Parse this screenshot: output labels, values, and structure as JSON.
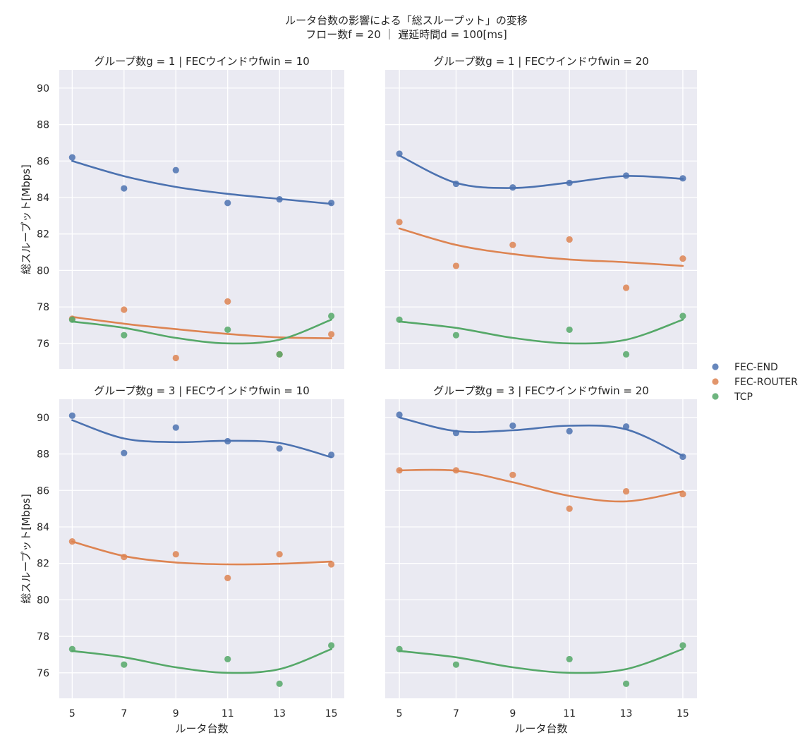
{
  "figure": {
    "title_line1": "ルータ台数の影響による「総スループット」の変移",
    "title_line2": "フロー数f = 20 ｜ 遅延時間d = 100[ms]"
  },
  "colors": {
    "FEC-END": "#4c72b0",
    "FEC-ROUTER": "#dd8452",
    "TCP": "#55a868",
    "panel_bg": "#eaeaf2",
    "grid": "#ffffff"
  },
  "legend": {
    "placement": "right",
    "entries": [
      "FEC-END",
      "FEC-ROUTER",
      "TCP"
    ]
  },
  "chart_data": [
    {
      "type": "scatter",
      "title": "グループ数g = 1 | FECウインドウfwin = 10",
      "xlabel": "",
      "ylabel": "総スループット[Mbps]",
      "xlim": [
        4.5,
        15.5
      ],
      "ylim": [
        74.6,
        91
      ],
      "x_ticks": [
        5,
        7,
        9,
        11,
        13,
        15
      ],
      "y_ticks": [
        76,
        78,
        80,
        82,
        84,
        86,
        88,
        90
      ],
      "grid": true,
      "fit": "polynomial trend line",
      "series": [
        {
          "name": "FEC-END",
          "x": [
            5,
            7,
            11,
            13,
            15,
            9
          ],
          "y": [
            86.2,
            84.5,
            83.7,
            83.9,
            83.7,
            85.5
          ],
          "fit_y": [
            86.0,
            85.17,
            84.58,
            84.2,
            83.92,
            83.65
          ]
        },
        {
          "name": "FEC-ROUTER",
          "x": [
            5,
            7,
            9,
            11,
            13,
            15
          ],
          "y": [
            77.35,
            77.85,
            75.2,
            78.3,
            75.4,
            76.5
          ],
          "fit_y": [
            77.45,
            77.08,
            76.78,
            76.52,
            76.33,
            76.28
          ]
        },
        {
          "name": "TCP",
          "x": [
            5,
            7,
            11,
            13,
            15
          ],
          "y": [
            77.3,
            76.45,
            76.75,
            75.4,
            77.5
          ],
          "fit_y": [
            77.2,
            76.85,
            76.3,
            76.0,
            76.2,
            77.3
          ]
        }
      ]
    },
    {
      "type": "scatter",
      "title": "グループ数g = 1 | FECウインドウfwin = 20",
      "xlabel": "",
      "ylabel": "",
      "xlim": [
        4.5,
        15.5
      ],
      "ylim": [
        74.6,
        91
      ],
      "x_ticks": [
        5,
        7,
        9,
        11,
        13,
        15
      ],
      "y_ticks": [
        76,
        78,
        80,
        82,
        84,
        86,
        88,
        90
      ],
      "grid": true,
      "fit": "polynomial trend line",
      "series": [
        {
          "name": "FEC-END",
          "x": [
            5,
            7,
            9,
            11,
            13,
            15
          ],
          "y": [
            86.4,
            84.75,
            84.55,
            84.8,
            85.2,
            85.05
          ],
          "fit_y": [
            86.3,
            84.8,
            84.52,
            84.82,
            85.18,
            85.02
          ]
        },
        {
          "name": "FEC-ROUTER",
          "x": [
            5,
            7,
            9,
            11,
            13,
            15
          ],
          "y": [
            82.65,
            80.25,
            81.4,
            81.7,
            79.05,
            80.65
          ],
          "fit_y": [
            82.3,
            81.4,
            80.9,
            80.6,
            80.45,
            80.25
          ]
        },
        {
          "name": "TCP",
          "x": [
            5,
            7,
            11,
            13,
            15
          ],
          "y": [
            77.3,
            76.45,
            76.75,
            75.4,
            77.5
          ],
          "fit_y": [
            77.2,
            76.85,
            76.3,
            76.0,
            76.2,
            77.3
          ]
        }
      ]
    },
    {
      "type": "scatter",
      "title": "グループ数g = 3 | FECウインドウfwin = 10",
      "xlabel": "ルータ台数",
      "ylabel": "総スループット[Mbps]",
      "xlim": [
        4.5,
        15.5
      ],
      "ylim": [
        74.6,
        91
      ],
      "x_ticks": [
        5,
        7,
        9,
        11,
        13,
        15
      ],
      "y_ticks": [
        76,
        78,
        80,
        82,
        84,
        86,
        88,
        90
      ],
      "grid": true,
      "fit": "polynomial trend line",
      "series": [
        {
          "name": "FEC-END",
          "x": [
            5,
            7,
            9,
            11,
            13,
            15
          ],
          "y": [
            90.1,
            88.05,
            89.45,
            88.7,
            88.3,
            87.95
          ],
          "fit_y": [
            89.85,
            88.85,
            88.65,
            88.72,
            88.6,
            87.82
          ]
        },
        {
          "name": "FEC-ROUTER",
          "x": [
            5,
            7,
            9,
            11,
            13,
            15
          ],
          "y": [
            83.2,
            82.35,
            82.5,
            81.2,
            82.5,
            81.95
          ],
          "fit_y": [
            83.2,
            82.4,
            82.05,
            81.95,
            81.98,
            82.1
          ]
        },
        {
          "name": "TCP",
          "x": [
            5,
            7,
            11,
            13,
            15
          ],
          "y": [
            77.3,
            76.45,
            76.75,
            75.4,
            77.5
          ],
          "fit_y": [
            77.2,
            76.85,
            76.3,
            76.0,
            76.2,
            77.3
          ]
        }
      ]
    },
    {
      "type": "scatter",
      "title": "グループ数g = 3 | FECウインドウfwin = 20",
      "xlabel": "ルータ台数",
      "ylabel": "",
      "xlim": [
        4.5,
        15.5
      ],
      "ylim": [
        74.6,
        91
      ],
      "x_ticks": [
        5,
        7,
        9,
        11,
        13,
        15
      ],
      "y_ticks": [
        76,
        78,
        80,
        82,
        84,
        86,
        88,
        90
      ],
      "grid": true,
      "fit": "polynomial trend line",
      "series": [
        {
          "name": "FEC-END",
          "x": [
            5,
            7,
            9,
            11,
            13,
            15
          ],
          "y": [
            90.15,
            89.15,
            89.55,
            89.25,
            89.5,
            87.85
          ],
          "fit_y": [
            90.0,
            89.25,
            89.3,
            89.55,
            89.35,
            87.9
          ]
        },
        {
          "name": "FEC-ROUTER",
          "x": [
            5,
            7,
            9,
            11,
            13,
            15
          ],
          "y": [
            87.1,
            87.1,
            86.85,
            85.0,
            85.95,
            85.8
          ],
          "fit_y": [
            87.1,
            87.08,
            86.45,
            85.7,
            85.4,
            85.95
          ]
        },
        {
          "name": "TCP",
          "x": [
            5,
            7,
            11,
            13,
            15
          ],
          "y": [
            77.3,
            76.45,
            76.75,
            75.4,
            77.5
          ],
          "fit_y": [
            77.2,
            76.85,
            76.3,
            76.0,
            76.2,
            77.3
          ]
        }
      ]
    }
  ]
}
